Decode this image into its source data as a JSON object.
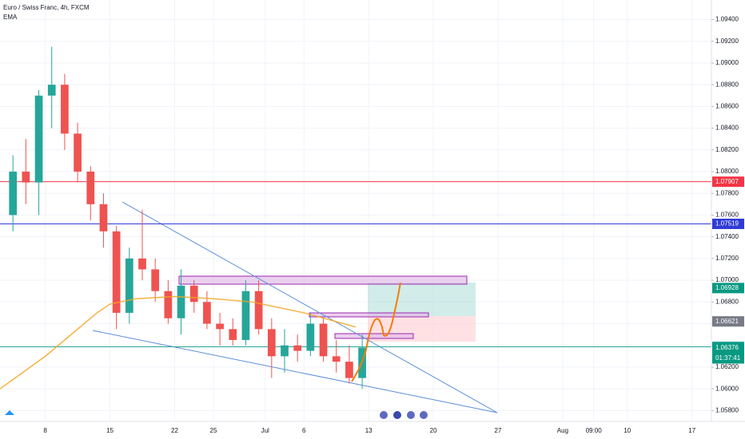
{
  "chart_data": {
    "type": "candlestick",
    "title": "Euro / Swiss Franc, 4h, FXCM",
    "indicator": "EMA",
    "up_color": "#26a69a",
    "down_color": "#ef5350",
    "x": [
      -3,
      -2,
      -1,
      0,
      1,
      2,
      3,
      4,
      5,
      6,
      7,
      8,
      9,
      10,
      11,
      12,
      13,
      14,
      15,
      16,
      17,
      18,
      19,
      20,
      21,
      22,
      23,
      24
    ],
    "open": [
      1.076,
      1.08,
      1.079,
      1.087,
      1.088,
      1.0835,
      1.08,
      1.077,
      1.0745,
      1.067,
      1.072,
      1.071,
      1.069,
      1.0665,
      1.0695,
      1.068,
      1.066,
      1.0655,
      1.0645,
      1.069,
      1.0655,
      1.063,
      1.064,
      1.0635,
      1.066,
      1.063,
      1.0625,
      1.061
    ],
    "high": [
      1.0815,
      1.083,
      1.0875,
      1.0915,
      1.089,
      1.0845,
      1.0805,
      1.078,
      1.075,
      1.073,
      1.0765,
      1.072,
      1.07,
      1.071,
      1.07,
      1.069,
      1.067,
      1.0665,
      1.07,
      1.07,
      1.0665,
      1.0655,
      1.065,
      1.067,
      1.0665,
      1.0645,
      1.064,
      1.065
    ],
    "low": [
      1.0745,
      1.077,
      1.076,
      1.084,
      1.082,
      1.079,
      1.0755,
      1.073,
      1.0655,
      1.066,
      1.07,
      1.068,
      1.066,
      1.065,
      1.067,
      1.0655,
      1.064,
      1.064,
      1.064,
      1.065,
      1.061,
      1.0615,
      1.0625,
      1.063,
      1.0625,
      1.0615,
      1.0605,
      1.06
    ],
    "close": [
      1.08,
      1.079,
      1.087,
      1.088,
      1.0835,
      1.08,
      1.077,
      1.0745,
      1.067,
      1.072,
      1.071,
      1.069,
      1.0665,
      1.0695,
      1.068,
      1.066,
      1.0655,
      1.0645,
      1.069,
      1.0655,
      1.063,
      1.064,
      1.0635,
      1.066,
      1.063,
      1.0625,
      1.061,
      1.0638
    ],
    "series": [
      {
        "name": "EMA",
        "color": "#f5a623",
        "x": [
          -3.5,
          0,
          2,
          4,
          5,
          7,
          10,
          13,
          16,
          20,
          24
        ],
        "values": [
          1.06,
          1.063,
          1.065,
          1.067,
          1.0678,
          1.0683,
          1.0685,
          1.0683,
          1.068,
          1.067,
          1.0657
        ]
      }
    ],
    "hlines": [
      {
        "value": 1.07907,
        "color": "#f23645"
      },
      {
        "value": 1.07519,
        "color": "#2f3bd6"
      },
      {
        "value": 1.06387,
        "color": "#26a69a"
      }
    ],
    "price_labels": [
      {
        "value": 1.06928,
        "color": "#089981"
      },
      {
        "value": 1.06621,
        "color": "#787b86"
      },
      {
        "value": 1.06376,
        "color": "#089981"
      }
    ],
    "countdown": "01:37:41",
    "xlim": [
      -3.5,
      51.5
    ],
    "ylim": [
      1.057,
      1.0958
    ],
    "xticks": [
      {
        "value": 0,
        "label": "8"
      },
      {
        "value": 5,
        "label": "15"
      },
      {
        "value": 10,
        "label": "22"
      },
      {
        "value": 13,
        "label": "25"
      },
      {
        "value": 17,
        "label": "Jul"
      },
      {
        "value": 20,
        "label": "6"
      },
      {
        "value": 25,
        "label": "13"
      },
      {
        "value": 30,
        "label": "20"
      },
      {
        "value": 35,
        "label": "27"
      },
      {
        "value": 40,
        "label": "Aug"
      },
      {
        "value": 42.4,
        "label": "09:00"
      },
      {
        "value": 45,
        "label": "10"
      },
      {
        "value": 50,
        "label": "17"
      }
    ],
    "yticks": [
      {
        "value": 1.094,
        "label": "1.09400"
      },
      {
        "value": 1.092,
        "label": "1.09200"
      },
      {
        "value": 1.09,
        "label": "1.09000"
      },
      {
        "value": 1.088,
        "label": "1.08800"
      },
      {
        "value": 1.086,
        "label": "1.08600"
      },
      {
        "value": 1.084,
        "label": "1.08400"
      },
      {
        "value": 1.082,
        "label": "1.08200"
      },
      {
        "value": 1.08,
        "label": "1.08000"
      },
      {
        "value": 1.078,
        "label": "1.07800"
      },
      {
        "value": 1.076,
        "label": "1.07600"
      },
      {
        "value": 1.074,
        "label": "1.07400"
      },
      {
        "value": 1.072,
        "label": "1.07200"
      },
      {
        "value": 1.07,
        "label": "1.07000"
      },
      {
        "value": 1.068,
        "label": "1.06800"
      },
      {
        "value": 1.066,
        "label": "1.06600"
      },
      {
        "value": 1.064,
        "label": "1.06400"
      },
      {
        "value": 1.062,
        "label": "1.06200"
      },
      {
        "value": 1.06,
        "label": "1.06000"
      },
      {
        "value": 1.058,
        "label": "1.05800"
      }
    ],
    "grid": true
  }
}
